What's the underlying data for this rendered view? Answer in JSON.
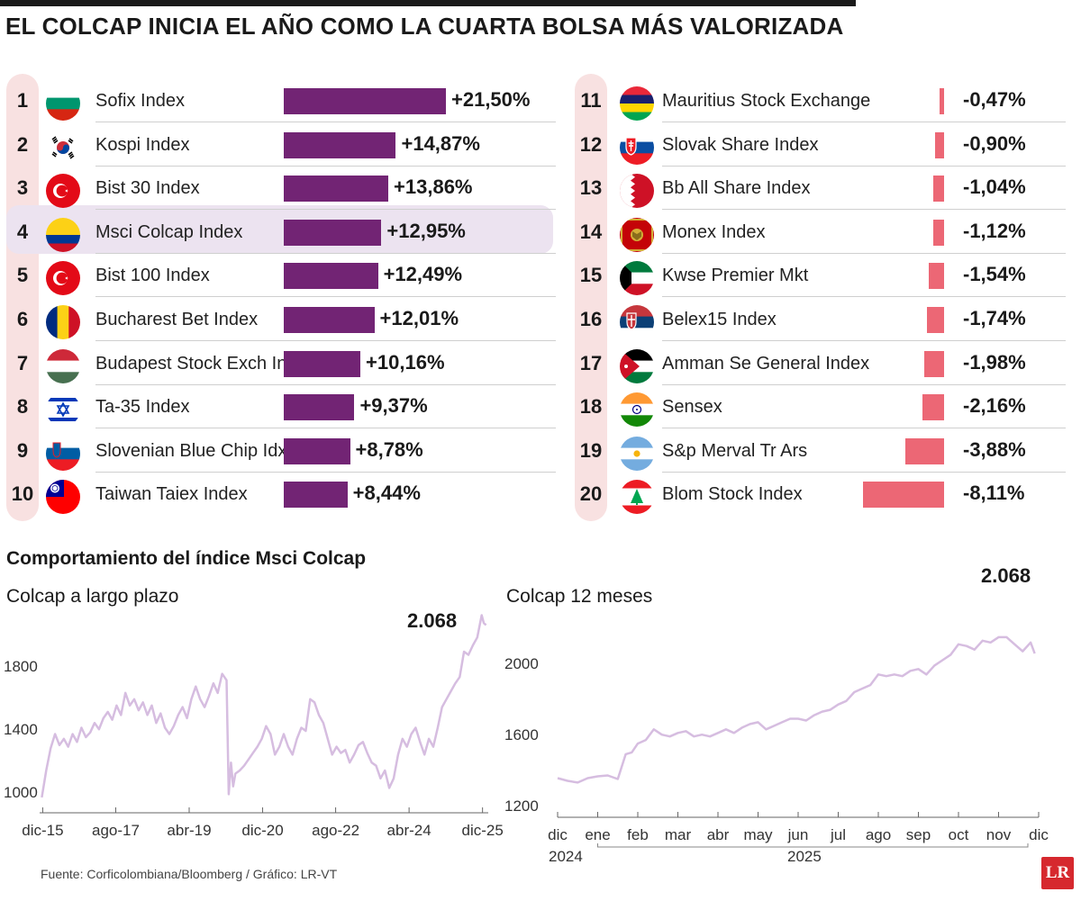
{
  "title": "EL COLCAP INICIA EL AÑO COMO LA CUARTA BOLSA MÁS VALORIZADA",
  "subtitle": "Comportamiento del índice Msci Colcap",
  "source": "Fuente: Corficolombiana/Bloomberg / Gráfico: LR-VT",
  "logo": "LR",
  "colors": {
    "positive": "#722474",
    "negative": "#ec6775",
    "line": "#d6bde0",
    "highlight": "#ece3f0",
    "numbers_bg": "#f8e1e1"
  },
  "highlighted_rank": 4,
  "chart_data": [
    {
      "type": "bar",
      "title": "Top 10 bolsas",
      "unit": "%",
      "series": [
        {
          "name": "Valorización",
          "values": [
            21.5,
            14.87,
            13.86,
            12.95,
            12.49,
            12.01,
            10.16,
            9.37,
            8.78,
            8.44
          ]
        }
      ],
      "rows": [
        {
          "rank": "1",
          "name": "Sofix Index",
          "value": 21.5,
          "label": "+21,50%",
          "flag": "bulgaria-flag-icon"
        },
        {
          "rank": "2",
          "name": "Kospi Index",
          "value": 14.87,
          "label": "+14,87%",
          "flag": "south-korea-flag-icon"
        },
        {
          "rank": "3",
          "name": "Bist 30 Index",
          "value": 13.86,
          "label": "+13,86%",
          "flag": "turkey-flag-icon"
        },
        {
          "rank": "4",
          "name": "Msci Colcap Index",
          "value": 12.95,
          "label": "+12,95%",
          "flag": "colombia-flag-icon"
        },
        {
          "rank": "5",
          "name": "Bist 100 Index",
          "value": 12.49,
          "label": "+12,49%",
          "flag": "turkey-flag-icon"
        },
        {
          "rank": "6",
          "name": "Bucharest Bet Index",
          "value": 12.01,
          "label": "+12,01%",
          "flag": "romania-flag-icon"
        },
        {
          "rank": "7",
          "name": "Budapest Stock Exch Ind",
          "value": 10.16,
          "label": "+10,16%",
          "flag": "hungary-flag-icon"
        },
        {
          "rank": "8",
          "name": "Ta-35 Index",
          "value": 9.37,
          "label": "+9,37%",
          "flag": "israel-flag-icon"
        },
        {
          "rank": "9",
          "name": "Slovenian Blue Chip Idx",
          "value": 8.78,
          "label": "+8,78%",
          "flag": "slovenia-flag-icon"
        },
        {
          "rank": "10",
          "name": "Taiwan Taiex Index",
          "value": 8.44,
          "label": "+8,44%",
          "flag": "taiwan-flag-icon"
        }
      ]
    },
    {
      "type": "bar",
      "title": "Bottom 10 bolsas",
      "unit": "%",
      "series": [
        {
          "name": "Valorización",
          "values": [
            -0.47,
            -0.9,
            -1.04,
            -1.12,
            -1.54,
            -1.74,
            -1.98,
            -2.16,
            -3.88,
            -8.11
          ]
        }
      ],
      "rows": [
        {
          "rank": "11",
          "name": "Mauritius Stock Exchange",
          "value": -0.47,
          "label": "-0,47%",
          "flag": "mauritius-flag-icon"
        },
        {
          "rank": "12",
          "name": "Slovak Share Index",
          "value": -0.9,
          "label": "-0,90%",
          "flag": "slovakia-flag-icon"
        },
        {
          "rank": "13",
          "name": "Bb All Share Index",
          "value": -1.04,
          "label": "-1,04%",
          "flag": "bahrain-flag-icon"
        },
        {
          "rank": "14",
          "name": "Monex Index",
          "value": -1.12,
          "label": "-1,12%",
          "flag": "montenegro-flag-icon"
        },
        {
          "rank": "15",
          "name": "Kwse Premier Mkt",
          "value": -1.54,
          "label": "-1,54%",
          "flag": "kuwait-flag-icon"
        },
        {
          "rank": "16",
          "name": "Belex15 Index",
          "value": -1.74,
          "label": "-1,74%",
          "flag": "serbia-flag-icon"
        },
        {
          "rank": "17",
          "name": "Amman Se General Index",
          "value": -1.98,
          "label": "-1,98%",
          "flag": "jordan-flag-icon"
        },
        {
          "rank": "18",
          "name": "Sensex",
          "value": -2.16,
          "label": "-2,16%",
          "flag": "india-flag-icon"
        },
        {
          "rank": "19",
          "name": "S&p Merval Tr Ars",
          "value": -3.88,
          "label": "-3,88%",
          "flag": "argentina-flag-icon"
        },
        {
          "rank": "20",
          "name": "Blom Stock Index",
          "value": -8.11,
          "label": "-8,11%",
          "flag": "lebanon-flag-icon"
        }
      ]
    },
    {
      "type": "line",
      "title": "Colcap a largo plazo",
      "last_value_label": "2.068",
      "ylim": [
        900,
        2150
      ],
      "yticks": [
        "1000",
        "1400",
        "1800"
      ],
      "ytick_values": [
        1000,
        1400,
        1800
      ],
      "xticks": [
        "dic-15",
        "ago-17",
        "abr-19",
        "dic-20",
        "ago-22",
        "abr-24",
        "dic-25"
      ],
      "xtick_values": [
        2015.92,
        2017.58,
        2019.25,
        2020.92,
        2022.58,
        2024.25,
        2025.92
      ],
      "xlim": [
        2015.85,
        2026.05
      ],
      "x": [
        2015.9,
        2016.0,
        2016.1,
        2016.2,
        2016.3,
        2016.4,
        2016.5,
        2016.6,
        2016.7,
        2016.8,
        2016.9,
        2017.0,
        2017.1,
        2017.2,
        2017.3,
        2017.4,
        2017.5,
        2017.6,
        2017.7,
        2017.8,
        2017.9,
        2018.0,
        2018.1,
        2018.2,
        2018.3,
        2018.4,
        2018.5,
        2018.6,
        2018.7,
        2018.8,
        2018.9,
        2019.0,
        2019.1,
        2019.2,
        2019.3,
        2019.4,
        2019.5,
        2019.6,
        2019.7,
        2019.8,
        2019.9,
        2020.0,
        2020.1,
        2020.15,
        2020.2,
        2020.25,
        2020.3,
        2020.4,
        2020.5,
        2020.6,
        2020.7,
        2020.8,
        2020.9,
        2021.0,
        2021.1,
        2021.2,
        2021.3,
        2021.4,
        2021.5,
        2021.6,
        2021.7,
        2021.8,
        2021.9,
        2022.0,
        2022.1,
        2022.2,
        2022.3,
        2022.4,
        2022.5,
        2022.6,
        2022.7,
        2022.8,
        2022.9,
        2023.0,
        2023.1,
        2023.2,
        2023.3,
        2023.4,
        2023.5,
        2023.6,
        2023.7,
        2023.8,
        2023.9,
        2024.0,
        2024.1,
        2024.2,
        2024.3,
        2024.4,
        2024.5,
        2024.6,
        2024.7,
        2024.8,
        2024.9,
        2025.0,
        2025.1,
        2025.2,
        2025.3,
        2025.4,
        2025.5,
        2025.6,
        2025.7,
        2025.8,
        2025.9,
        2025.95,
        2026.0
      ],
      "y": [
        980,
        1150,
        1290,
        1380,
        1310,
        1350,
        1300,
        1380,
        1330,
        1420,
        1360,
        1390,
        1450,
        1410,
        1480,
        1520,
        1470,
        1560,
        1500,
        1640,
        1560,
        1600,
        1530,
        1580,
        1500,
        1560,
        1450,
        1510,
        1420,
        1380,
        1430,
        1500,
        1550,
        1480,
        1600,
        1680,
        1600,
        1550,
        1620,
        1700,
        1640,
        1760,
        1720,
        1000,
        1200,
        1050,
        1130,
        1150,
        1180,
        1220,
        1260,
        1300,
        1350,
        1430,
        1380,
        1250,
        1300,
        1380,
        1300,
        1250,
        1350,
        1420,
        1400,
        1600,
        1580,
        1500,
        1450,
        1350,
        1250,
        1300,
        1260,
        1280,
        1200,
        1250,
        1310,
        1330,
        1260,
        1200,
        1180,
        1100,
        1150,
        1040,
        1100,
        1250,
        1350,
        1300,
        1380,
        1420,
        1330,
        1250,
        1350,
        1300,
        1420,
        1550,
        1600,
        1650,
        1700,
        1740,
        1900,
        1880,
        1940,
        1990,
        2130,
        2080,
        2068
      ]
    },
    {
      "type": "line",
      "title": "Colcap 12 meses",
      "last_value_label": "2.068",
      "ylim": [
        1200,
        2200
      ],
      "yticks": [
        "1200",
        "1600",
        "2000"
      ],
      "ytick_values": [
        1200,
        1600,
        2000
      ],
      "xticks": [
        "dic",
        "ene",
        "feb",
        "mar",
        "abr",
        "may",
        "jun",
        "jul",
        "ago",
        "sep",
        "oct",
        "nov",
        "dic"
      ],
      "xtick_values": [
        0,
        1,
        2,
        3,
        4,
        5,
        6,
        7,
        8,
        9,
        10,
        11,
        12
      ],
      "year_labels": [
        "2024",
        "2025"
      ],
      "xlim": [
        0,
        12
      ],
      "x": [
        0,
        0.25,
        0.5,
        0.75,
        1,
        1.25,
        1.5,
        1.7,
        1.85,
        2,
        2.2,
        2.4,
        2.6,
        2.8,
        3,
        3.2,
        3.4,
        3.6,
        3.8,
        4,
        4.2,
        4.4,
        4.6,
        4.8,
        5,
        5.2,
        5.4,
        5.6,
        5.8,
        6,
        6.2,
        6.4,
        6.6,
        6.8,
        7,
        7.2,
        7.4,
        7.6,
        7.8,
        8,
        8.2,
        8.4,
        8.6,
        8.8,
        9,
        9.2,
        9.4,
        9.6,
        9.8,
        10,
        10.2,
        10.4,
        10.6,
        10.8,
        11,
        11.2,
        11.4,
        11.6,
        11.8,
        11.9
      ],
      "y": [
        1365,
        1350,
        1340,
        1365,
        1375,
        1380,
        1360,
        1500,
        1510,
        1560,
        1580,
        1640,
        1610,
        1600,
        1620,
        1630,
        1600,
        1610,
        1600,
        1620,
        1640,
        1620,
        1650,
        1670,
        1680,
        1640,
        1660,
        1680,
        1700,
        1700,
        1690,
        1720,
        1740,
        1750,
        1780,
        1800,
        1850,
        1870,
        1890,
        1950,
        1940,
        1950,
        1940,
        1970,
        1980,
        1950,
        2000,
        2030,
        2060,
        2120,
        2110,
        2090,
        2140,
        2130,
        2160,
        2160,
        2120,
        2080,
        2130,
        2068
      ]
    }
  ]
}
